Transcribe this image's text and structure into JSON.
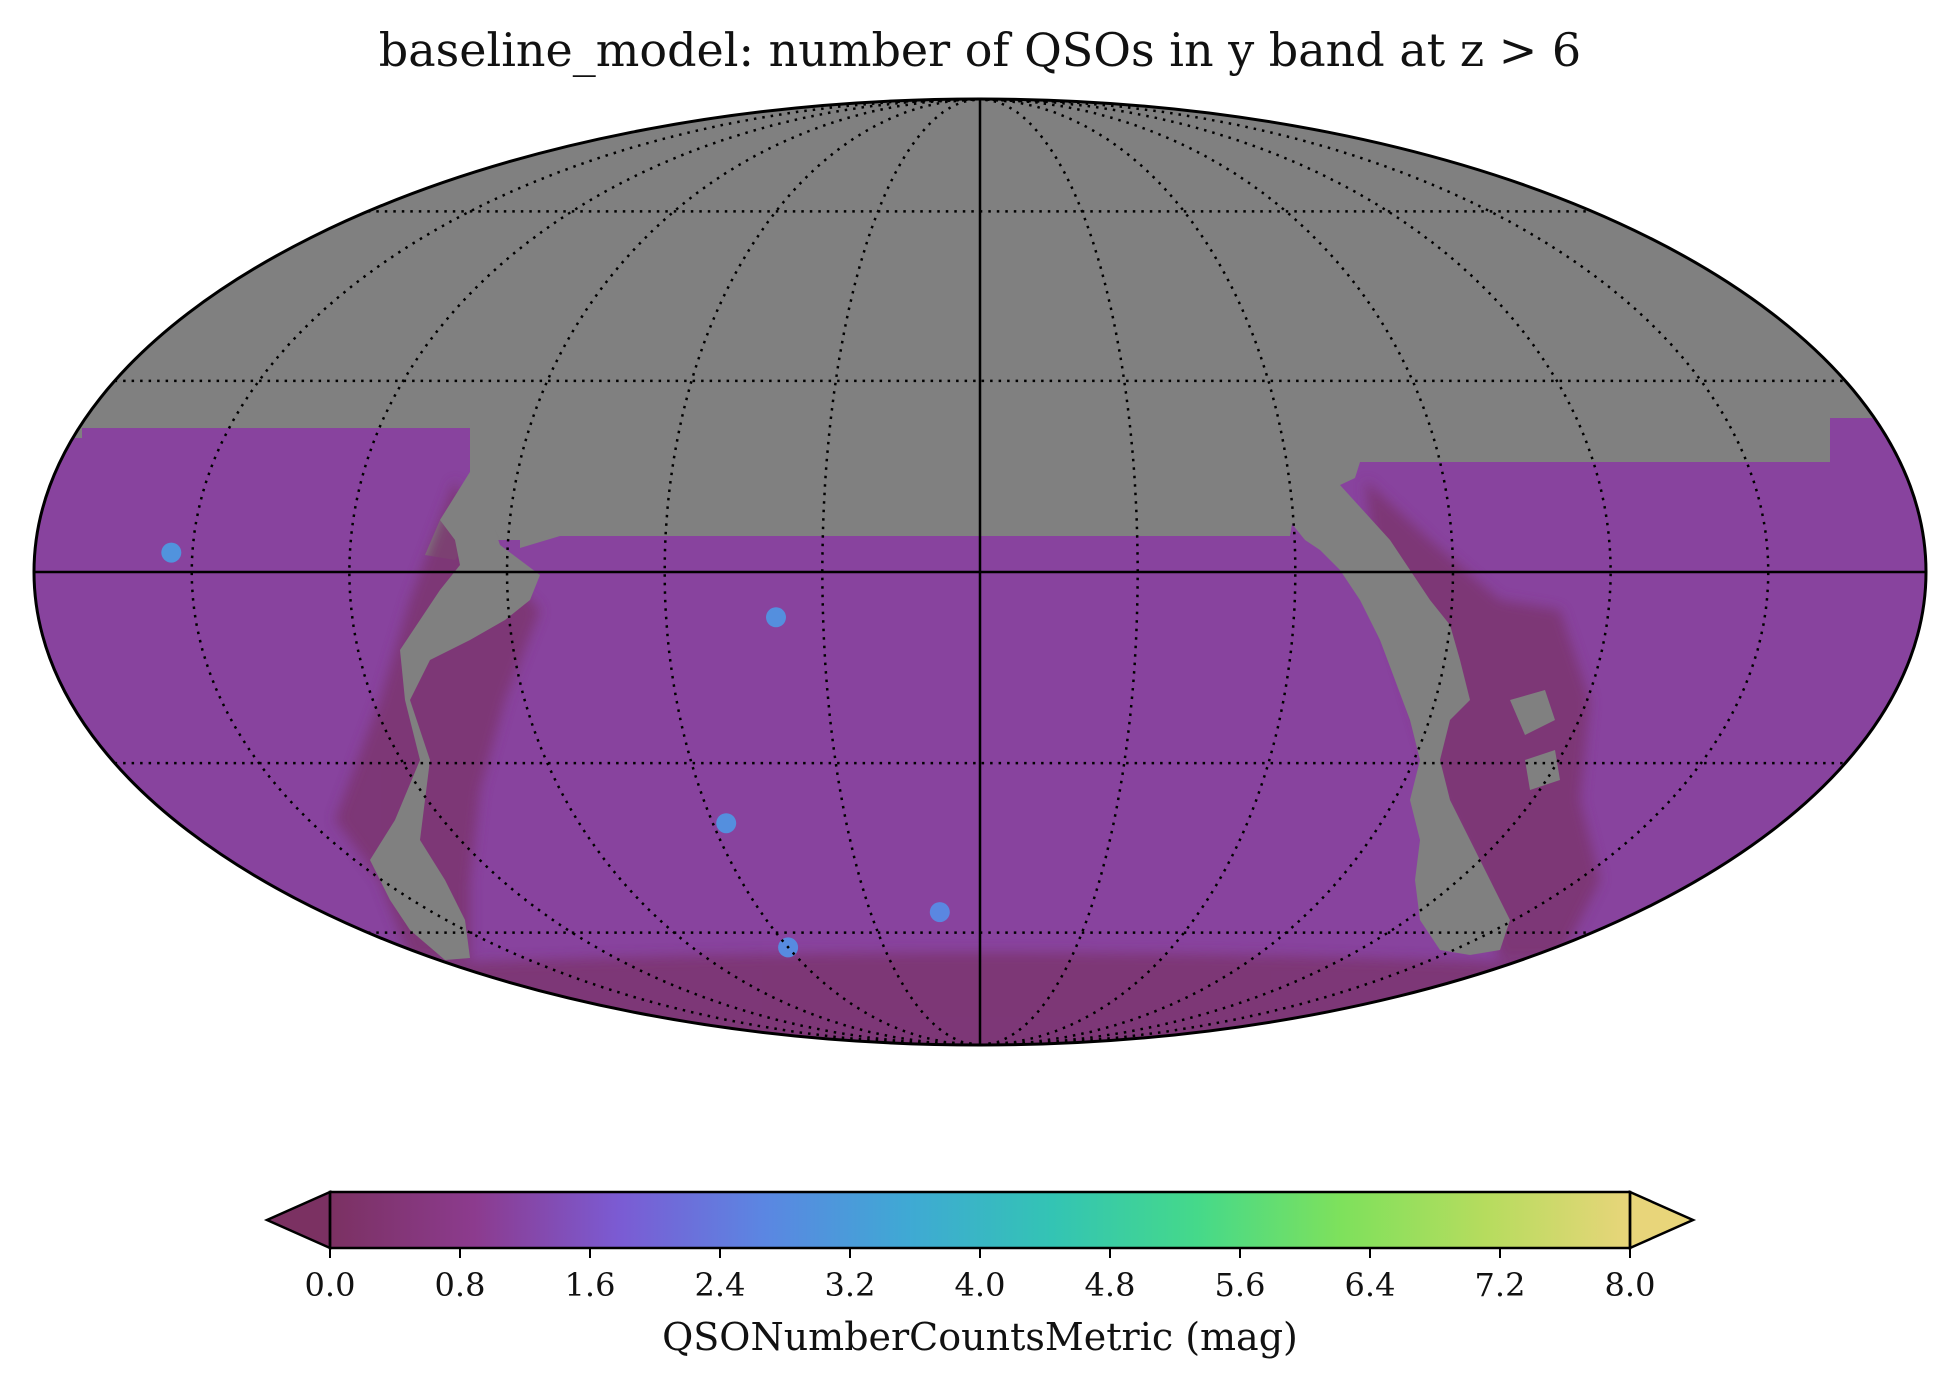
{
  "chart_data": {
    "type": "heatmap",
    "title": "baseline_model: number of QSOs in y band at z > 6",
    "projection": "mollweide",
    "graticule": "dotted",
    "masked_color": "#808080",
    "colorbar": {
      "label": "QSONumberCountsMetric (mag)",
      "range": [
        0.0,
        8.0
      ],
      "extend": "both",
      "orientation": "horizontal",
      "ticks": [
        "0.0",
        "0.8",
        "1.6",
        "2.4",
        "3.2",
        "4.0",
        "4.8",
        "5.6",
        "6.4",
        "7.2",
        "8.0"
      ],
      "colormap": [
        "#7b3162",
        "#8c3b8e",
        "#7b5bd3",
        "#5b86e2",
        "#3fa9d4",
        "#33c4b4",
        "#45d98a",
        "#7ee15c",
        "#b6dc5e",
        "#e8d57a"
      ]
    },
    "map_values": {
      "typical_survey_value": 1.1,
      "plane_edge_value": 0.4,
      "hot_spots": [
        {
          "ra_offset_deg": 154,
          "dec_deg": 3,
          "value": 3.0
        },
        {
          "ra_offset_deg": 39,
          "dec_deg": -7,
          "value": 2.9
        },
        {
          "ra_offset_deg": 57,
          "dec_deg": -40,
          "value": 2.9
        },
        {
          "ra_offset_deg": 11,
          "dec_deg": -56,
          "value": 2.7
        },
        {
          "ra_offset_deg": 60,
          "dec_deg": -63,
          "value": 2.8
        }
      ]
    }
  }
}
